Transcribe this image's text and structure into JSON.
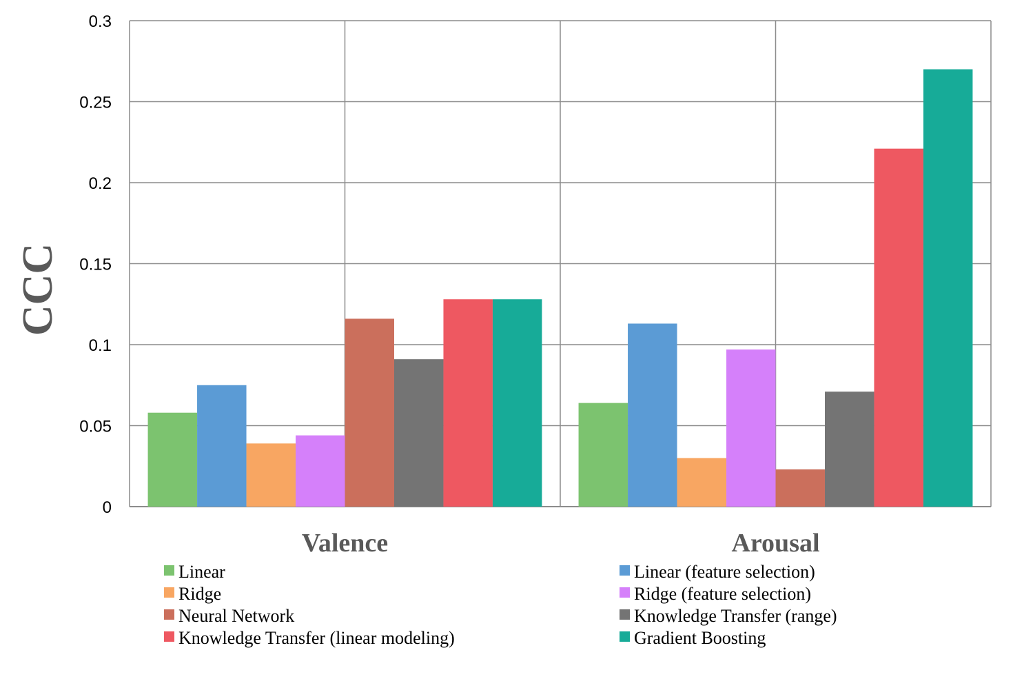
{
  "chart_data": {
    "type": "bar",
    "title": "",
    "xlabel": "",
    "ylabel": "CCC",
    "ylim": [
      0,
      0.3
    ],
    "yticks": [
      0,
      0.05,
      0.1,
      0.15,
      0.2,
      0.25,
      0.3
    ],
    "ytick_labels": [
      "0",
      "0.05",
      "0.1",
      "0.15",
      "0.2",
      "0.25",
      "0.3"
    ],
    "grid": true,
    "legend_position": "bottom",
    "categories": [
      "Valence",
      "Arousal"
    ],
    "series": [
      {
        "name": "Linear",
        "color": "#7cc36f",
        "values": [
          0.058,
          0.064
        ]
      },
      {
        "name": "Linear (feature selection)",
        "color": "#5b9bd5",
        "values": [
          0.075,
          0.113
        ]
      },
      {
        "name": "Ridge",
        "color": "#f8a662",
        "values": [
          0.039,
          0.03
        ]
      },
      {
        "name": "Ridge (feature selection)",
        "color": "#d580fa",
        "values": [
          0.044,
          0.097
        ]
      },
      {
        "name": "Neural Network",
        "color": "#cb6f5c",
        "values": [
          0.116,
          0.023
        ]
      },
      {
        "name": "Knowledge Transfer (range)",
        "color": "#747474",
        "values": [
          0.091,
          0.071
        ]
      },
      {
        "name": "Knowledge Transfer (linear modeling)",
        "color": "#ee5861",
        "values": [
          0.128,
          0.221
        ]
      },
      {
        "name": "Gradient Boosting",
        "color": "#17ab98",
        "values": [
          0.128,
          0.27
        ]
      }
    ]
  }
}
